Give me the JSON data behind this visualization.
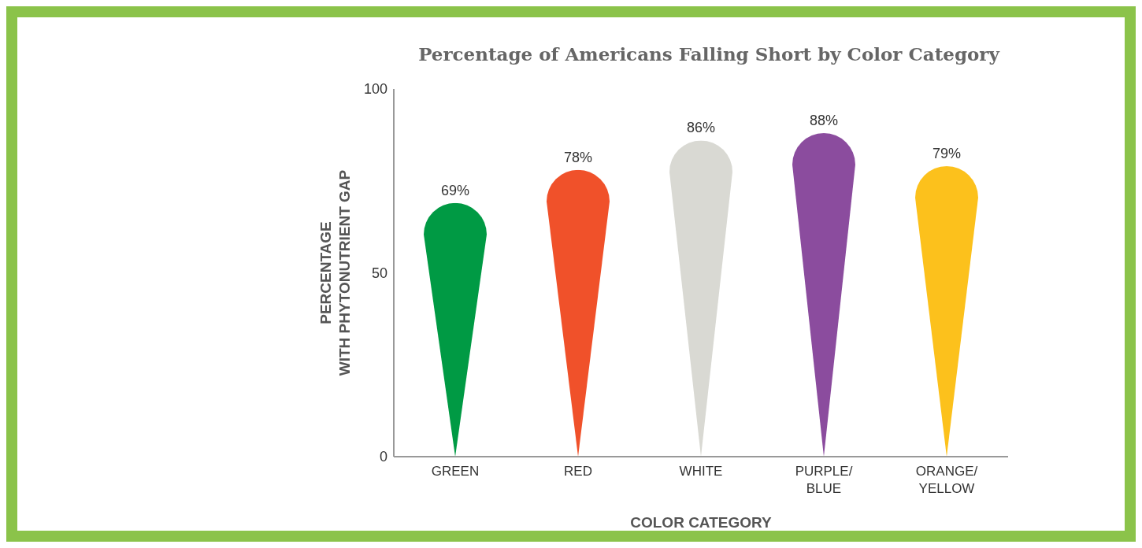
{
  "chart_data": {
    "type": "bar",
    "title": "Percentage of Americans Falling Short by Color Category",
    "xlabel": "COLOR CATEGORY",
    "ylabel": "PERCENTAGE WITH PHYTONUTRIENT GAP",
    "categories": [
      "GREEN",
      "RED",
      "WHITE",
      "PURPLE/BLUE",
      "ORANGE/YELLOW"
    ],
    "values": [
      69,
      78,
      86,
      88,
      79
    ],
    "colors": [
      "#009a44",
      "#f0512a",
      "#d9d9d3",
      "#8b4c9e",
      "#fcc11c"
    ],
    "value_labels": [
      "69%",
      "78%",
      "86%",
      "88%",
      "79%"
    ],
    "ylim": [
      0,
      100
    ],
    "yticks": [
      0,
      50,
      100
    ],
    "grid": false,
    "legend": false
  }
}
